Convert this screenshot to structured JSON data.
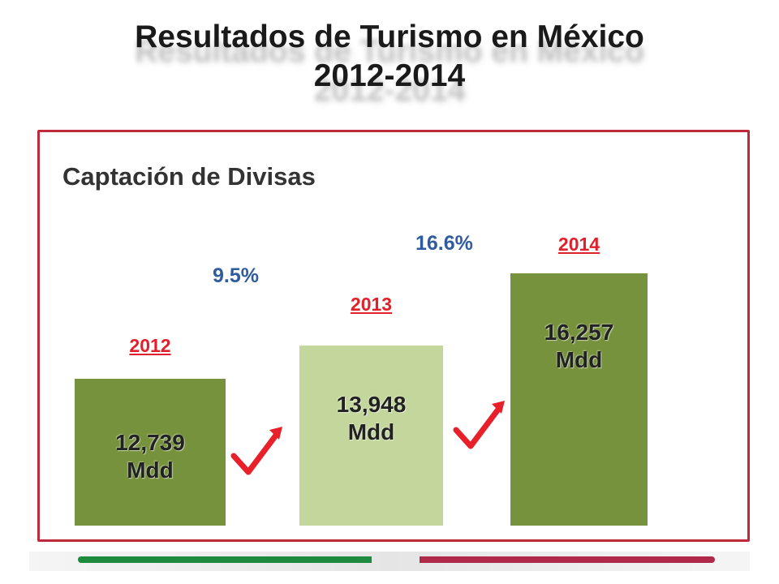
{
  "title": {
    "line1": "Resultados de Turismo en México",
    "line2": "2012-2014"
  },
  "section_title": "Captación de Divisas",
  "chart_data": {
    "type": "bar",
    "title": "Captación de Divisas",
    "categories": [
      "2012",
      "2013",
      "2014"
    ],
    "values": [
      12739,
      13948,
      16257
    ],
    "value_labels": [
      "12,739",
      "13,948",
      "16,257"
    ],
    "unit": "Mdd",
    "growth_labels": [
      "9.5%",
      "16.6%"
    ],
    "colors": {
      "bar_dark": "#76923c",
      "bar_light": "#c3d69b",
      "year_text": "#e0202a",
      "growth_text": "#2e5c9e",
      "check": "#e8202a",
      "frame": "#c0283c"
    }
  },
  "footer_colors": {
    "left": "#1e8a3e",
    "right": "#b0294a"
  }
}
